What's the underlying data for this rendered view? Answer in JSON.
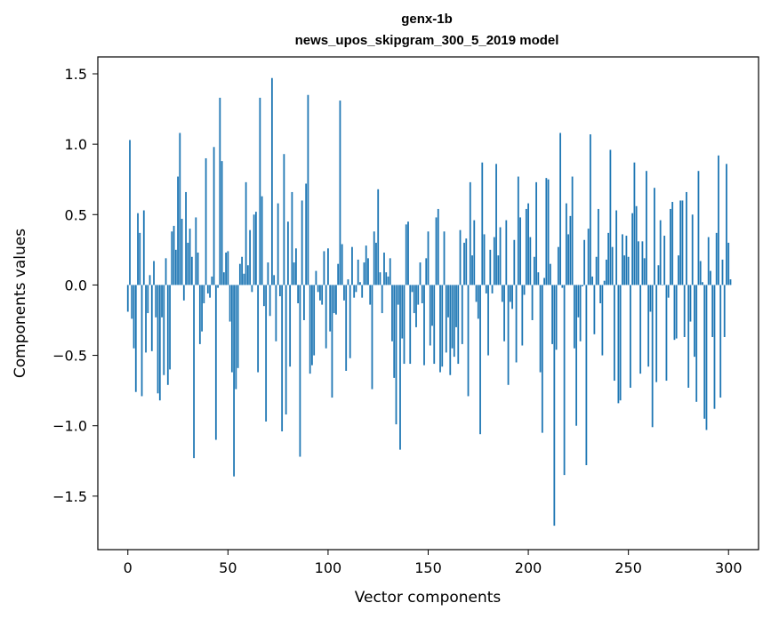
{
  "chart_data": {
    "type": "bar",
    "title": "genx-1b",
    "subtitle": "news_upos_skipgram_300_5_2019 model",
    "xlabel": "Vector components",
    "ylabel": "Components values",
    "xlim": [
      -15,
      315
    ],
    "ylim": [
      -1.88,
      1.62
    ],
    "xticks": [
      0,
      50,
      100,
      150,
      200,
      250,
      300
    ],
    "xtick_labels": [
      "0",
      "50",
      "100",
      "150",
      "200",
      "250",
      "300"
    ],
    "yticks": [
      -1.5,
      -1.0,
      -0.5,
      0.0,
      0.5,
      1.0,
      1.5
    ],
    "ytick_labels": [
      "−1.5",
      "−1.0",
      "−0.5",
      "0.0",
      "0.5",
      "1.0",
      "1.5"
    ],
    "bar_color": "#1f77b4",
    "values": [
      -0.19,
      1.03,
      -0.24,
      -0.45,
      -0.76,
      0.51,
      0.37,
      -0.79,
      0.53,
      -0.48,
      -0.2,
      0.07,
      -0.47,
      0.17,
      -0.23,
      -0.77,
      -0.82,
      -0.23,
      -0.64,
      0.19,
      -0.71,
      -0.6,
      0.38,
      0.42,
      0.25,
      0.77,
      1.08,
      0.47,
      -0.11,
      0.66,
      0.3,
      0.4,
      0.2,
      -1.23,
      0.48,
      0.23,
      -0.42,
      -0.33,
      -0.13,
      0.9,
      -0.06,
      -0.09,
      0.06,
      0.98,
      -1.1,
      -0.02,
      1.33,
      0.88,
      0.09,
      0.23,
      0.24,
      -0.26,
      -0.62,
      -1.36,
      -0.74,
      -0.59,
      0.15,
      0.2,
      0.08,
      0.73,
      0.14,
      0.39,
      -0.05,
      0.5,
      0.52,
      -0.62,
      1.33,
      0.63,
      -0.15,
      -0.97,
      0.16,
      -0.22,
      1.47,
      0.07,
      -0.4,
      0.58,
      -0.08,
      -1.04,
      0.93,
      -0.92,
      0.45,
      -0.58,
      0.66,
      0.16,
      0.26,
      -0.13,
      -1.22,
      0.6,
      -0.25,
      0.72,
      1.35,
      -0.63,
      -0.57,
      -0.5,
      0.1,
      -0.05,
      -0.11,
      -0.14,
      0.24,
      -0.45,
      0.26,
      -0.33,
      -0.8,
      -0.2,
      -0.21,
      0.15,
      1.31,
      0.29,
      -0.11,
      -0.61,
      0.04,
      -0.52,
      0.27,
      -0.09,
      -0.05,
      0.18,
      0.02,
      -0.09,
      0.16,
      0.28,
      0.19,
      -0.14,
      -0.74,
      0.38,
      0.3,
      0.68,
      0.09,
      -0.2,
      0.23,
      0.09,
      0.06,
      0.19,
      -0.4,
      -0.66,
      -0.99,
      -0.14,
      -1.17,
      -0.38,
      -0.56,
      0.43,
      0.45,
      -0.56,
      -0.05,
      -0.2,
      -0.3,
      -0.14,
      0.16,
      -0.13,
      -0.57,
      0.19,
      0.38,
      -0.43,
      -0.29,
      -0.56,
      0.48,
      0.54,
      -0.62,
      -0.58,
      0.38,
      -0.48,
      -0.23,
      -0.64,
      -0.45,
      -0.51,
      -0.3,
      -0.56,
      0.39,
      -0.42,
      0.3,
      0.33,
      -0.79,
      0.73,
      0.21,
      0.46,
      -0.12,
      -0.24,
      -1.06,
      0.87,
      0.36,
      -0.06,
      -0.5,
      0.25,
      -0.06,
      0.34,
      0.86,
      0.21,
      0.41,
      -0.12,
      -0.4,
      0.46,
      -0.71,
      -0.12,
      -0.17,
      0.32,
      -0.55,
      0.77,
      0.48,
      -0.43,
      -0.07,
      0.54,
      0.58,
      0.34,
      -0.25,
      0.2,
      0.73,
      0.09,
      -0.62,
      -1.05,
      0.05,
      0.76,
      0.75,
      0.15,
      -0.42,
      -1.71,
      -0.46,
      0.27,
      1.08,
      -0.02,
      -1.35,
      0.58,
      0.36,
      0.49,
      0.77,
      -0.45,
      -1.0,
      -0.23,
      -0.4,
      -0.01,
      0.32,
      -1.28,
      0.4,
      1.07,
      0.06,
      -0.35,
      0.2,
      0.54,
      -0.13,
      -0.5,
      0.03,
      0.18,
      0.37,
      0.96,
      0.27,
      -0.68,
      0.53,
      -0.84,
      -0.82,
      0.36,
      0.21,
      0.35,
      0.2,
      -0.73,
      0.51,
      0.87,
      0.56,
      0.31,
      -0.63,
      0.31,
      0.19,
      0.81,
      -0.58,
      -0.19,
      -1.01,
      0.69,
      -0.69,
      0.14,
      0.46,
      0.0,
      0.35,
      -0.68,
      -0.09,
      0.54,
      0.59,
      -0.39,
      -0.38,
      0.21,
      0.6,
      0.6,
      -0.37,
      0.66,
      -0.73,
      -0.26,
      0.5,
      -0.51,
      -0.83,
      0.81,
      0.17,
      0.02,
      -0.95,
      -1.03,
      0.34,
      0.1,
      -0.37,
      -0.88,
      0.37,
      0.92,
      -0.8,
      0.18,
      -0.37,
      0.86,
      0.3,
      0.04
    ]
  }
}
